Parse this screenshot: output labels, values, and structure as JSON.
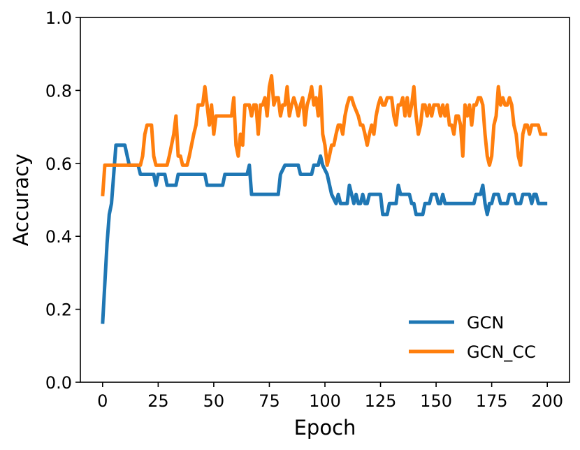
{
  "chart_data": {
    "type": "line",
    "title": "",
    "xlabel": "Epoch",
    "ylabel": "Accuracy",
    "xlim": [
      -10,
      210
    ],
    "ylim": [
      0.0,
      1.0
    ],
    "xticks": [
      "0",
      "25",
      "50",
      "75",
      "100",
      "125",
      "150",
      "175",
      "200"
    ],
    "yticks": [
      "0.0",
      "0.2",
      "0.4",
      "0.6",
      "0.8",
      "1.0"
    ],
    "grid": false,
    "legend_position": "lower-right",
    "series": [
      {
        "name": "GCN",
        "color": "#1f77b4",
        "points": [
          [
            0,
            0.16
          ],
          [
            2,
            0.38
          ],
          [
            3,
            0.46
          ],
          [
            4,
            0.49
          ],
          [
            6,
            0.65
          ],
          [
            10,
            0.65
          ],
          [
            12,
            0.595
          ],
          [
            16,
            0.595
          ],
          [
            17,
            0.57
          ],
          [
            23,
            0.57
          ],
          [
            24,
            0.54
          ],
          [
            25,
            0.57
          ],
          [
            28,
            0.57
          ],
          [
            29,
            0.54
          ],
          [
            33,
            0.54
          ],
          [
            34,
            0.57
          ],
          [
            46,
            0.57
          ],
          [
            47,
            0.54
          ],
          [
            54,
            0.54
          ],
          [
            55,
            0.57
          ],
          [
            65,
            0.57
          ],
          [
            66,
            0.595
          ],
          [
            67,
            0.515
          ],
          [
            79,
            0.515
          ],
          [
            80,
            0.57
          ],
          [
            82,
            0.595
          ],
          [
            88,
            0.595
          ],
          [
            89,
            0.57
          ],
          [
            94,
            0.57
          ],
          [
            95,
            0.595
          ],
          [
            97,
            0.595
          ],
          [
            98,
            0.62
          ],
          [
            99,
            0.595
          ],
          [
            101,
            0.57
          ],
          [
            103,
            0.515
          ],
          [
            105,
            0.49
          ],
          [
            106,
            0.515
          ],
          [
            107,
            0.49
          ],
          [
            110,
            0.49
          ],
          [
            111,
            0.54
          ],
          [
            112,
            0.515
          ],
          [
            113,
            0.49
          ],
          [
            114,
            0.515
          ],
          [
            115,
            0.49
          ],
          [
            116,
            0.49
          ],
          [
            117,
            0.515
          ],
          [
            118,
            0.49
          ],
          [
            119,
            0.49
          ],
          [
            120,
            0.515
          ],
          [
            125,
            0.515
          ],
          [
            126,
            0.46
          ],
          [
            128,
            0.46
          ],
          [
            129,
            0.49
          ],
          [
            132,
            0.49
          ],
          [
            133,
            0.54
          ],
          [
            134,
            0.515
          ],
          [
            138,
            0.515
          ],
          [
            139,
            0.49
          ],
          [
            140,
            0.49
          ],
          [
            141,
            0.46
          ],
          [
            144,
            0.46
          ],
          [
            145,
            0.49
          ],
          [
            147,
            0.49
          ],
          [
            148,
            0.515
          ],
          [
            150,
            0.515
          ],
          [
            151,
            0.49
          ],
          [
            152,
            0.49
          ],
          [
            153,
            0.515
          ],
          [
            154,
            0.49
          ],
          [
            167,
            0.49
          ],
          [
            168,
            0.515
          ],
          [
            170,
            0.515
          ],
          [
            171,
            0.54
          ],
          [
            172,
            0.49
          ],
          [
            173,
            0.46
          ],
          [
            174,
            0.49
          ],
          [
            175,
            0.49
          ],
          [
            176,
            0.515
          ],
          [
            178,
            0.515
          ],
          [
            179,
            0.49
          ],
          [
            182,
            0.49
          ],
          [
            183,
            0.515
          ],
          [
            185,
            0.515
          ],
          [
            186,
            0.49
          ],
          [
            188,
            0.49
          ],
          [
            189,
            0.515
          ],
          [
            192,
            0.515
          ],
          [
            193,
            0.49
          ],
          [
            194,
            0.515
          ],
          [
            195,
            0.515
          ],
          [
            196,
            0.49
          ],
          [
            200,
            0.49
          ]
        ]
      },
      {
        "name": "GCN_CC",
        "color": "#ff7f0e",
        "points": [
          [
            0,
            0.51
          ],
          [
            1,
            0.595
          ],
          [
            17,
            0.595
          ],
          [
            18,
            0.62
          ],
          [
            19,
            0.68
          ],
          [
            20,
            0.705
          ],
          [
            22,
            0.705
          ],
          [
            23,
            0.62
          ],
          [
            24,
            0.595
          ],
          [
            29,
            0.595
          ],
          [
            30,
            0.62
          ],
          [
            31,
            0.65
          ],
          [
            32,
            0.68
          ],
          [
            33,
            0.73
          ],
          [
            34,
            0.62
          ],
          [
            35,
            0.62
          ],
          [
            36,
            0.595
          ],
          [
            38,
            0.595
          ],
          [
            39,
            0.62
          ],
          [
            41,
            0.68
          ],
          [
            42,
            0.705
          ],
          [
            43,
            0.76
          ],
          [
            45,
            0.76
          ],
          [
            46,
            0.81
          ],
          [
            47,
            0.76
          ],
          [
            48,
            0.705
          ],
          [
            49,
            0.76
          ],
          [
            50,
            0.68
          ],
          [
            51,
            0.73
          ],
          [
            58,
            0.73
          ],
          [
            59,
            0.78
          ],
          [
            60,
            0.65
          ],
          [
            61,
            0.62
          ],
          [
            62,
            0.68
          ],
          [
            63,
            0.65
          ],
          [
            64,
            0.76
          ],
          [
            66,
            0.76
          ],
          [
            67,
            0.73
          ],
          [
            68,
            0.76
          ],
          [
            69,
            0.76
          ],
          [
            70,
            0.68
          ],
          [
            71,
            0.76
          ],
          [
            72,
            0.76
          ],
          [
            73,
            0.78
          ],
          [
            74,
            0.73
          ],
          [
            75,
            0.81
          ],
          [
            76,
            0.84
          ],
          [
            77,
            0.76
          ],
          [
            78,
            0.78
          ],
          [
            79,
            0.78
          ],
          [
            80,
            0.73
          ],
          [
            81,
            0.76
          ],
          [
            82,
            0.76
          ],
          [
            83,
            0.81
          ],
          [
            84,
            0.73
          ],
          [
            85,
            0.76
          ],
          [
            86,
            0.78
          ],
          [
            87,
            0.76
          ],
          [
            88,
            0.73
          ],
          [
            89,
            0.76
          ],
          [
            90,
            0.78
          ],
          [
            91,
            0.705
          ],
          [
            92,
            0.76
          ],
          [
            93,
            0.78
          ],
          [
            94,
            0.81
          ],
          [
            95,
            0.76
          ],
          [
            96,
            0.78
          ],
          [
            97,
            0.73
          ],
          [
            98,
            0.81
          ],
          [
            99,
            0.68
          ],
          [
            100,
            0.65
          ],
          [
            101,
            0.595
          ],
          [
            102,
            0.62
          ],
          [
            103,
            0.65
          ],
          [
            104,
            0.65
          ],
          [
            105,
            0.68
          ],
          [
            106,
            0.705
          ],
          [
            107,
            0.705
          ],
          [
            108,
            0.68
          ],
          [
            109,
            0.73
          ],
          [
            110,
            0.76
          ],
          [
            111,
            0.78
          ],
          [
            112,
            0.78
          ],
          [
            113,
            0.76
          ],
          [
            115,
            0.73
          ],
          [
            116,
            0.705
          ],
          [
            117,
            0.705
          ],
          [
            118,
            0.68
          ],
          [
            119,
            0.65
          ],
          [
            120,
            0.68
          ],
          [
            121,
            0.705
          ],
          [
            122,
            0.68
          ],
          [
            123,
            0.73
          ],
          [
            124,
            0.76
          ],
          [
            125,
            0.78
          ],
          [
            126,
            0.76
          ],
          [
            127,
            0.76
          ],
          [
            128,
            0.78
          ],
          [
            130,
            0.78
          ],
          [
            131,
            0.73
          ],
          [
            132,
            0.705
          ],
          [
            133,
            0.76
          ],
          [
            134,
            0.76
          ],
          [
            135,
            0.78
          ],
          [
            136,
            0.73
          ],
          [
            137,
            0.78
          ],
          [
            138,
            0.73
          ],
          [
            139,
            0.76
          ],
          [
            140,
            0.81
          ],
          [
            141,
            0.73
          ],
          [
            142,
            0.68
          ],
          [
            143,
            0.705
          ],
          [
            144,
            0.76
          ],
          [
            145,
            0.76
          ],
          [
            146,
            0.73
          ],
          [
            147,
            0.76
          ],
          [
            148,
            0.73
          ],
          [
            149,
            0.76
          ],
          [
            151,
            0.76
          ],
          [
            152,
            0.73
          ],
          [
            153,
            0.76
          ],
          [
            154,
            0.73
          ],
          [
            155,
            0.76
          ],
          [
            156,
            0.705
          ],
          [
            157,
            0.705
          ],
          [
            158,
            0.68
          ],
          [
            159,
            0.73
          ],
          [
            160,
            0.73
          ],
          [
            161,
            0.705
          ],
          [
            162,
            0.62
          ],
          [
            163,
            0.76
          ],
          [
            164,
            0.73
          ],
          [
            165,
            0.76
          ],
          [
            166,
            0.705
          ],
          [
            167,
            0.76
          ],
          [
            168,
            0.76
          ],
          [
            169,
            0.78
          ],
          [
            170,
            0.78
          ],
          [
            171,
            0.76
          ],
          [
            172,
            0.68
          ],
          [
            173,
            0.62
          ],
          [
            174,
            0.595
          ],
          [
            175,
            0.62
          ],
          [
            176,
            0.705
          ],
          [
            177,
            0.73
          ],
          [
            178,
            0.81
          ],
          [
            179,
            0.76
          ],
          [
            180,
            0.78
          ],
          [
            181,
            0.76
          ],
          [
            182,
            0.76
          ],
          [
            183,
            0.78
          ],
          [
            184,
            0.76
          ],
          [
            185,
            0.705
          ],
          [
            186,
            0.68
          ],
          [
            187,
            0.62
          ],
          [
            188,
            0.595
          ],
          [
            189,
            0.68
          ],
          [
            190,
            0.705
          ],
          [
            191,
            0.705
          ],
          [
            192,
            0.68
          ],
          [
            193,
            0.705
          ],
          [
            196,
            0.705
          ],
          [
            197,
            0.68
          ],
          [
            200,
            0.68
          ]
        ]
      }
    ]
  }
}
